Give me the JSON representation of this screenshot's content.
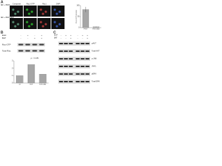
{
  "panel_a": {
    "label": "A",
    "columns": [
      "Composite",
      "Rac1-GTP",
      "Rac1",
      "DAPI"
    ],
    "rows": [
      "IEC + PEST",
      "IEC + PEST-BAT"
    ],
    "chart": {
      "y_label": "Rac1-GTP intensity",
      "categories": [
        "PEST",
        "PEST-BAT"
      ],
      "values": [
        82,
        4
      ],
      "errors": [
        12,
        1
      ],
      "ylim": [
        0,
        100
      ],
      "yticks": [
        0,
        50,
        100
      ],
      "color": "#a6a6a6"
    }
  },
  "panel_b": {
    "label": "B",
    "treatments": [
      {
        "name": "EGF",
        "signs": [
          "-",
          "+",
          "-",
          "+"
        ]
      },
      {
        "name": "BAT",
        "signs": [
          "-",
          "-",
          "+",
          "+"
        ]
      }
    ],
    "blots": [
      "Rac-GTP",
      "Total Rac"
    ],
    "chart": {
      "annotation": "p < 0.05",
      "categories": [
        "ctrl",
        "EGF",
        "EGF+BAT"
      ],
      "values": [
        1,
        2.5,
        1.2
      ],
      "ylim": [
        0,
        3
      ],
      "yticks": [
        0,
        1,
        2,
        3
      ],
      "color": "#a6a6a6"
    }
  },
  "panel_c": {
    "label": "C",
    "treatments": [
      {
        "name": "EGF",
        "signs": [
          "-",
          "+",
          "+",
          "-",
          "+",
          "+"
        ]
      },
      {
        "name": "BAT",
        "signs": [
          "-",
          "-",
          "+",
          "-",
          "-",
          "+"
        ]
      }
    ],
    "blots": [
      "pAKT",
      "Total AKT",
      "p-JNK",
      "JNK1",
      "pERK",
      "Total ERK"
    ]
  }
}
